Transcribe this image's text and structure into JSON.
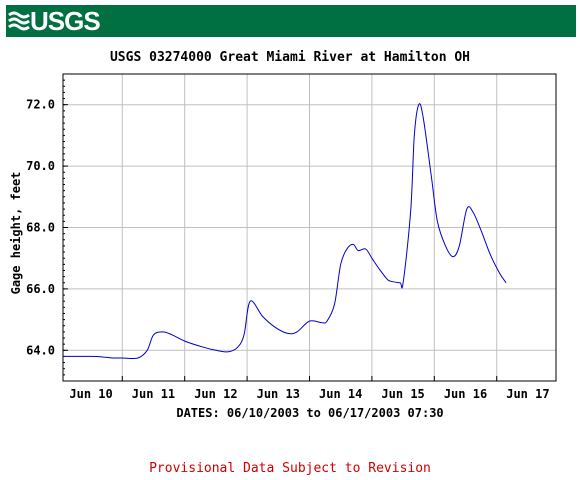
{
  "header": {
    "logo_text": "USGS"
  },
  "chart_data": {
    "type": "line",
    "title": "USGS 03274000 Great Miami River at Hamilton OH",
    "ylabel": "Gage height, feet",
    "xlabel": "DATES: 06/10/2003 to 06/17/2003 07:30",
    "footer_note": "Provisional Data Subject to Revision",
    "ylim": [
      63.0,
      73.0
    ],
    "xlim": [
      -0.45,
      7.45
    ],
    "grid": true,
    "y_ticks": [
      64.0,
      66.0,
      68.0,
      70.0,
      72.0
    ],
    "y_tick_labels": [
      "64.0",
      "66.0",
      "68.0",
      "70.0",
      "72.0"
    ],
    "x_ticks": [
      0,
      1,
      2,
      3,
      4,
      5,
      6,
      7
    ],
    "x_tick_labels": [
      "Jun 10",
      "Jun 11",
      "Jun 12",
      "Jun 13",
      "Jun 14",
      "Jun 15",
      "Jun 16",
      "Jun 17"
    ],
    "x_gridlines": [
      -0.5,
      0.5,
      1.5,
      2.5,
      3.5,
      4.5,
      5.5,
      6.5
    ],
    "line_color": "#0000cc",
    "series": [
      {
        "x": [
          -0.45,
          0.0,
          0.2,
          0.35,
          0.5,
          0.75,
          0.9,
          1.0,
          1.15,
          1.3,
          1.5,
          1.8,
          2.0,
          2.2,
          2.35,
          2.45,
          2.55,
          2.75,
          2.95,
          3.15,
          3.3,
          3.5,
          3.7,
          3.78,
          3.9,
          4.0,
          4.1,
          4.2,
          4.28,
          4.4,
          4.5,
          4.6,
          4.73,
          4.8,
          4.95,
          5.0,
          5.12,
          5.18,
          5.25,
          5.32,
          5.45,
          5.55,
          5.68,
          5.8,
          5.9,
          6.02,
          6.12,
          6.25,
          6.4,
          6.55,
          6.65
        ],
        "y": [
          63.8,
          63.8,
          63.78,
          63.75,
          63.75,
          63.75,
          64.0,
          64.5,
          64.6,
          64.5,
          64.3,
          64.1,
          64.0,
          63.95,
          64.1,
          64.5,
          65.6,
          65.1,
          64.75,
          64.55,
          64.6,
          64.95,
          64.9,
          64.95,
          65.5,
          66.8,
          67.3,
          67.45,
          67.25,
          67.3,
          67.0,
          66.7,
          66.35,
          66.25,
          66.2,
          66.2,
          68.5,
          71.0,
          72.0,
          71.6,
          69.7,
          68.2,
          67.4,
          67.05,
          67.4,
          68.6,
          68.5,
          67.9,
          67.1,
          66.5,
          66.2
        ]
      }
    ]
  }
}
